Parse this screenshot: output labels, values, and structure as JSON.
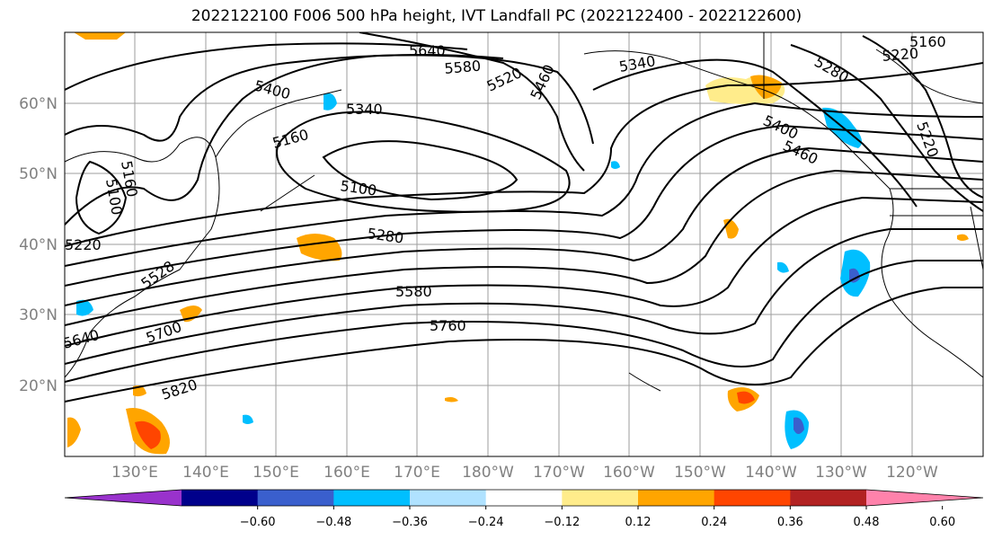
{
  "title": "2022122100 F006 500 hPa height, IVT Landfall PC (2022122400 - 2022122600)",
  "lat_labels": [
    "60°N",
    "50°N",
    "40°N",
    "30°N",
    "20°N"
  ],
  "lon_labels": [
    "130°E",
    "140°E",
    "150°E",
    "160°E",
    "170°E",
    "180°W",
    "170°W",
    "160°W",
    "150°W",
    "140°W",
    "130°W",
    "120°W"
  ],
  "contour_labels": [
    "5640",
    "5580",
    "5520",
    "5460",
    "5340",
    "5400",
    "5340",
    "5160",
    "5100",
    "5160",
    "5100",
    "5280",
    "5220",
    "5280",
    "5220",
    "5160",
    "5400",
    "5460",
    "5220",
    "5580",
    "5760",
    "5700",
    "5640",
    "5820",
    "5528"
  ],
  "colorbar": {
    "ticks": [
      "−0.60",
      "−0.48",
      "−0.36",
      "−0.24",
      "−0.12",
      "0.12",
      "0.24",
      "0.36",
      "0.48",
      "0.60"
    ],
    "colors": [
      "#9932cc",
      "#00008b",
      "#3a5fcd",
      "#00bfff",
      "#b0e2ff",
      "#ffffff",
      "#ffec8b",
      "#ffa500",
      "#ff4500",
      "#b22222",
      "#ff82ab"
    ]
  }
}
